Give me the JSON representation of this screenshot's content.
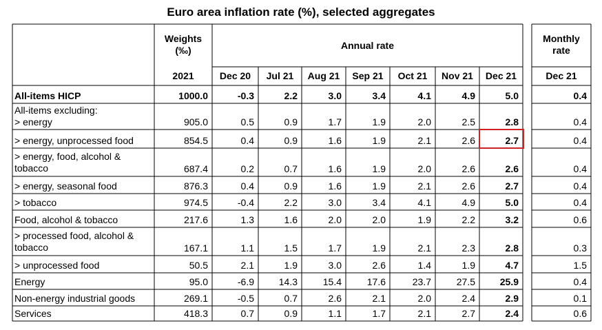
{
  "title": "Euro area inflation rate (%), selected aggregates",
  "header": {
    "weights_label": "Weights\n(‰)",
    "annual_label": "Annual rate",
    "monthly_label": "Monthly\nrate",
    "weights_year": "2021",
    "annual_months": [
      "Dec 20",
      "Jul 21",
      "Aug 21",
      "Sep 21",
      "Oct 21",
      "Nov 21",
      "Dec 21"
    ],
    "monthly_month": "Dec 21"
  },
  "rows": [
    {
      "label": "All-items HICP",
      "bold": true,
      "weight": "1000.0",
      "annual": [
        "-0.3",
        "2.2",
        "3.0",
        "3.4",
        "4.1",
        "4.9",
        "5.0"
      ],
      "monthly": "0.4"
    },
    {
      "label": "All-items excluding:\n> energy",
      "bold": false,
      "weight": "905.0",
      "annual": [
        "0.5",
        "0.9",
        "1.7",
        "1.9",
        "2.0",
        "2.5",
        "2.8"
      ],
      "monthly": "0.4"
    },
    {
      "label": "> energy, unprocessed food",
      "bold": false,
      "highlight": true,
      "weight": "854.5",
      "annual": [
        "0.4",
        "0.9",
        "1.6",
        "1.9",
        "2.1",
        "2.6",
        "2.7"
      ],
      "monthly": "0.4"
    },
    {
      "label": "> energy, food, alcohol &\ntobacco",
      "bold": false,
      "weight": "687.4",
      "annual": [
        "0.2",
        "0.7",
        "1.6",
        "1.9",
        "2.0",
        "2.6",
        "2.6"
      ],
      "monthly": "0.4"
    },
    {
      "label": "> energy, seasonal food",
      "bold": false,
      "weight": "876.3",
      "annual": [
        "0.4",
        "0.9",
        "1.6",
        "1.9",
        "2.1",
        "2.6",
        "2.7"
      ],
      "monthly": "0.4"
    },
    {
      "label": "> tobacco",
      "bold": false,
      "weight": "974.5",
      "annual": [
        "-0.4",
        "2.2",
        "3.0",
        "3.4",
        "4.1",
        "4.9",
        "5.0"
      ],
      "monthly": "0.4"
    },
    {
      "label": "Food, alcohol & tobacco",
      "bold": false,
      "weight": "217.6",
      "annual": [
        "1.3",
        "1.6",
        "2.0",
        "2.0",
        "1.9",
        "2.2",
        "3.2"
      ],
      "monthly": "0.6"
    },
    {
      "label": "> processed food, alcohol &\ntobacco",
      "bold": false,
      "weight": "167.1",
      "annual": [
        "1.1",
        "1.5",
        "1.7",
        "1.9",
        "2.1",
        "2.3",
        "2.8"
      ],
      "monthly": "0.3"
    },
    {
      "label": "> unprocessed food",
      "bold": false,
      "weight": "50.5",
      "annual": [
        "2.1",
        "1.9",
        "3.0",
        "2.6",
        "1.4",
        "1.9",
        "4.7"
      ],
      "monthly": "1.5"
    },
    {
      "label": "Energy",
      "bold": false,
      "weight": "95.0",
      "annual": [
        "-6.9",
        "14.3",
        "15.4",
        "17.6",
        "23.7",
        "27.5",
        "25.9"
      ],
      "monthly": "0.4"
    },
    {
      "label": "Non-energy industrial goods",
      "bold": false,
      "weight": "269.1",
      "annual": [
        "-0.5",
        "0.7",
        "2.6",
        "2.1",
        "2.0",
        "2.4",
        "2.9"
      ],
      "monthly": "0.1"
    },
    {
      "label": "Services",
      "bold": false,
      "weight": "418.3",
      "annual": [
        "0.7",
        "0.9",
        "1.1",
        "1.7",
        "2.1",
        "2.7",
        "2.4"
      ],
      "monthly": "0.6"
    }
  ]
}
